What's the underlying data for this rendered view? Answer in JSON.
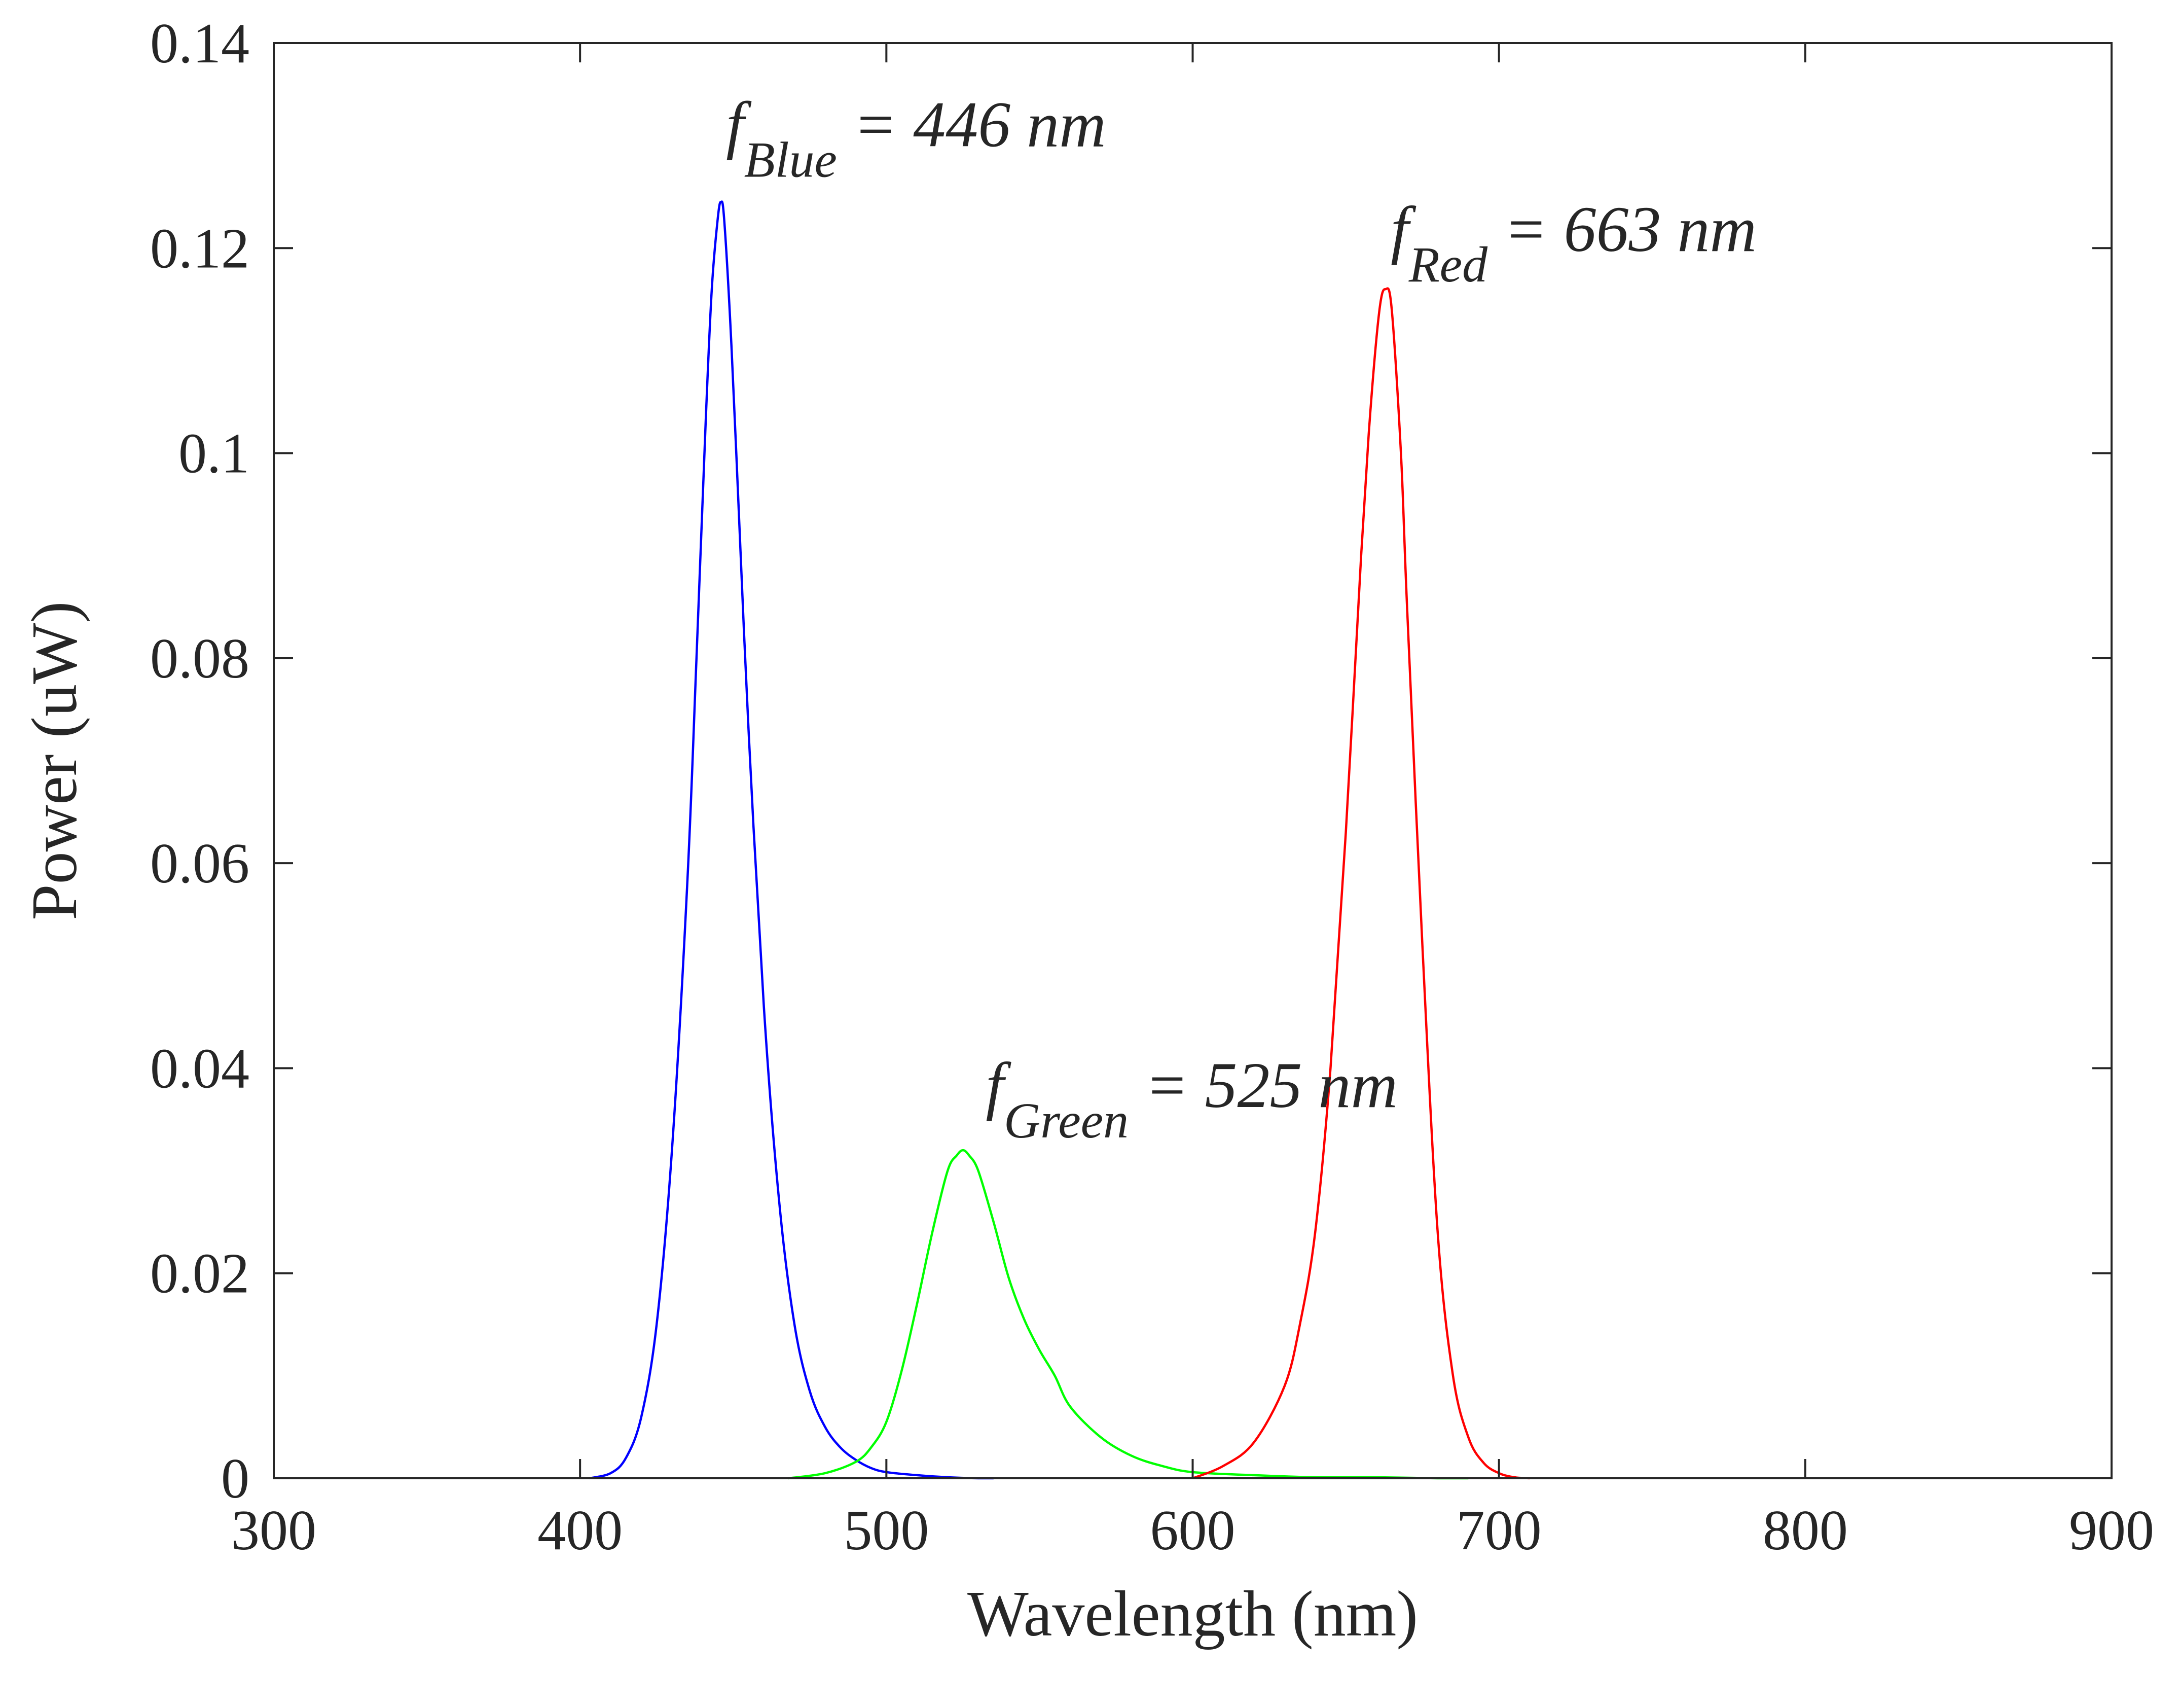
{
  "chart_data": {
    "type": "line",
    "title": "",
    "xlabel": "Wavelength (nm)",
    "ylabel": "Power (uW)",
    "xlim": [
      300,
      900
    ],
    "ylim": [
      0,
      0.14
    ],
    "xticks": [
      300,
      400,
      500,
      600,
      700,
      800,
      900
    ],
    "xtick_labels": [
      "300",
      "400",
      "500",
      "600",
      "700",
      "800",
      "900"
    ],
    "yticks": [
      0,
      0.02,
      0.04,
      0.06,
      0.08,
      0.1,
      0.12,
      0.14
    ],
    "ytick_labels": [
      "0",
      "0.02",
      "0.04",
      "0.06",
      "0.08",
      "0.1",
      "0.12",
      "0.14"
    ],
    "grid": false,
    "series": [
      {
        "name": "Blue",
        "color": "#0000ff",
        "x": [
          403,
          410,
          415,
          420,
          425,
          430,
          435,
          438,
          441,
          443,
          445,
          446,
          447,
          449,
          451,
          455,
          460,
          465,
          470,
          475,
          480,
          485,
          490,
          495,
          500,
          510,
          520,
          530,
          535
        ],
        "y": [
          0,
          0.0005,
          0.002,
          0.006,
          0.015,
          0.032,
          0.058,
          0.08,
          0.103,
          0.116,
          0.123,
          0.1245,
          0.123,
          0.113,
          0.1,
          0.073,
          0.046,
          0.027,
          0.015,
          0.0085,
          0.005,
          0.003,
          0.0018,
          0.001,
          0.0006,
          0.0003,
          0.0001,
          0,
          0
        ]
      },
      {
        "name": "Green",
        "color": "#00ff00",
        "x": [
          468,
          480,
          490,
          495,
          500,
          505,
          510,
          515,
          520,
          523,
          525,
          527,
          530,
          535,
          540,
          545,
          550,
          555,
          560,
          570,
          580,
          590,
          600,
          620,
          640,
          660,
          680,
          690
        ],
        "y": [
          0,
          0.0005,
          0.0016,
          0.003,
          0.0055,
          0.0105,
          0.017,
          0.024,
          0.03,
          0.0315,
          0.032,
          0.0315,
          0.03,
          0.025,
          0.0195,
          0.0155,
          0.0125,
          0.01,
          0.007,
          0.004,
          0.0022,
          0.0012,
          0.0006,
          0.0003,
          0.0001,
          0.0001,
          0,
          0
        ]
      },
      {
        "name": "Red",
        "color": "#ff0000",
        "x": [
          600,
          610,
          620,
          630,
          635,
          640,
          645,
          650,
          655,
          658,
          661,
          663,
          665,
          668,
          670,
          675,
          680,
          685,
          690,
          695,
          700,
          705,
          710
        ],
        "y": [
          0,
          0.0012,
          0.0035,
          0.009,
          0.015,
          0.024,
          0.04,
          0.063,
          0.09,
          0.104,
          0.114,
          0.116,
          0.114,
          0.1,
          0.085,
          0.052,
          0.024,
          0.01,
          0.004,
          0.0015,
          0.0005,
          0.0001,
          0
        ]
      }
    ],
    "annotations": [
      {
        "series": "Blue",
        "x": 446,
        "y": 0.1245,
        "symbol": "f",
        "subscript": "Blue",
        "text": " = 446 nm"
      },
      {
        "series": "Red",
        "x": 663,
        "y": 0.116,
        "symbol": "f",
        "subscript": "Red",
        "text": " = 663 nm"
      },
      {
        "series": "Green",
        "x": 525,
        "y": 0.032,
        "symbol": "f",
        "subscript": "Green",
        "text": " = 525 nm"
      }
    ],
    "axis_color": "#262626"
  }
}
